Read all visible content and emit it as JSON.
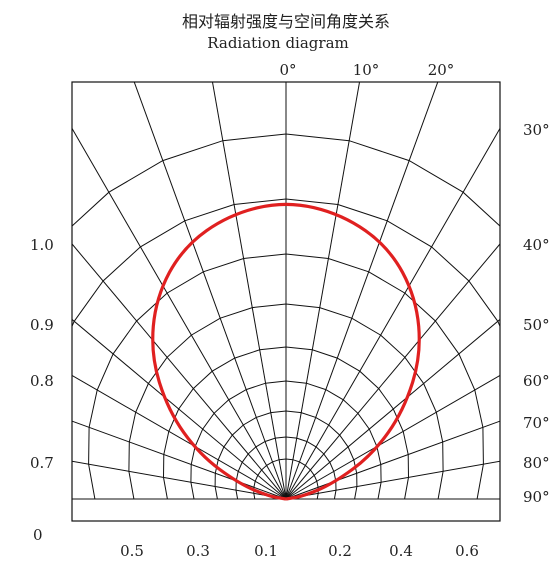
{
  "chart_data": {
    "type": "line",
    "title": "相对辐射强度与空间角度关系",
    "subtitle": "Radiation diagram",
    "top_angle_labels": [
      "0°",
      "10°",
      "20°"
    ],
    "right_angle_labels": [
      "30°",
      "40°",
      "50°",
      "60°",
      "70°",
      "80°",
      "90°"
    ],
    "left_intensity_labels": [
      "1.0",
      "0.9",
      "0.8",
      "0.7",
      "0"
    ],
    "bottom_intensity_labels": [
      "0.5",
      "0.3",
      "0.1",
      "0.2",
      "0.4",
      "0.6"
    ],
    "series_color": "#e02020",
    "grid_color": "#111111",
    "series": [
      {
        "curve": "beam_pattern",
        "angles_deg": [
          0,
          10,
          20,
          30,
          40,
          50,
          60,
          70,
          80,
          90
        ],
        "relative_intensity": [
          1.0,
          0.97,
          0.9,
          0.78,
          0.63,
          0.46,
          0.3,
          0.15,
          0.05,
          0.0
        ]
      }
    ]
  }
}
